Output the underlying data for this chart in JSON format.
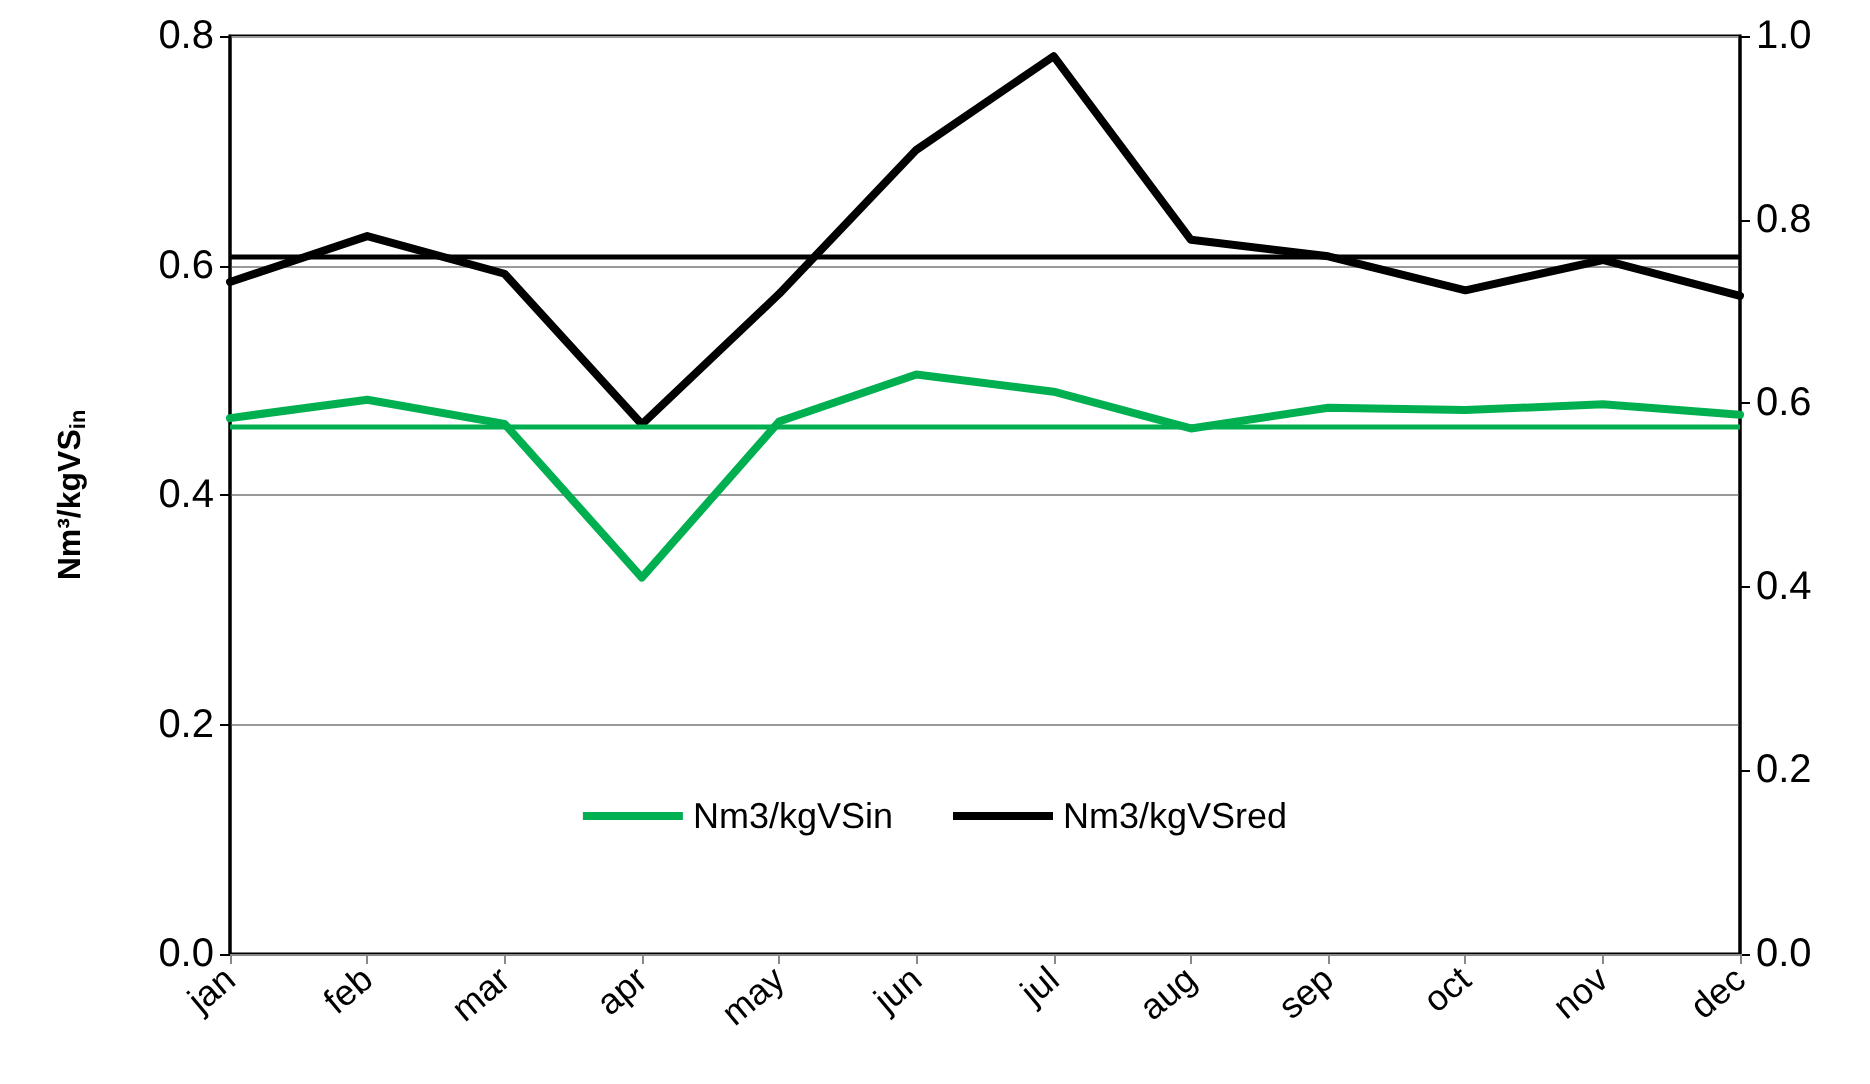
{
  "chart_data": {
    "type": "line",
    "ylabel": "Nm³/kgVS$_{in}$",
    "categories": [
      "jan",
      "feb",
      "mar",
      "apr",
      "may",
      "jun",
      "jul",
      "aug",
      "sep",
      "oct",
      "nov",
      "dec"
    ],
    "series": [
      {
        "name": "Nm3/kgVSin",
        "color": "#00b050",
        "values": [
          0.467,
          0.483,
          0.462,
          0.328,
          0.464,
          0.505,
          0.49,
          0.458,
          0.476,
          0.474,
          0.479,
          0.47
        ]
      },
      {
        "name": "Nm3/kgVSred",
        "color": "#000000",
        "axis": "y2",
        "values": [
          0.732,
          0.782,
          0.741,
          0.577,
          0.719,
          0.876,
          0.978,
          0.778,
          0.76,
          0.723,
          0.756,
          0.717
        ]
      }
    ],
    "ylim": [
      0,
      0.8
    ],
    "yticks": [
      {
        "value": 0,
        "label": "0.0"
      },
      0.2,
      0.4,
      0.6,
      0.8
    ],
    "y2lim": [
      0,
      1
    ],
    "y2ticks": [
      {
        "value": 0,
        "label": "0.0"
      },
      0.2,
      0.4,
      0.6,
      0.8,
      {
        "value": 1,
        "label": "1.0"
      }
    ],
    "ref_lines": [
      {
        "axis": "y",
        "value": 0.462,
        "color": "#00b050"
      },
      {
        "axis": "y2",
        "value": 0.76,
        "color": "#000000"
      }
    ],
    "grid": "y",
    "legend": "bottom",
    "marker": "none",
    "line_style": "solid"
  }
}
